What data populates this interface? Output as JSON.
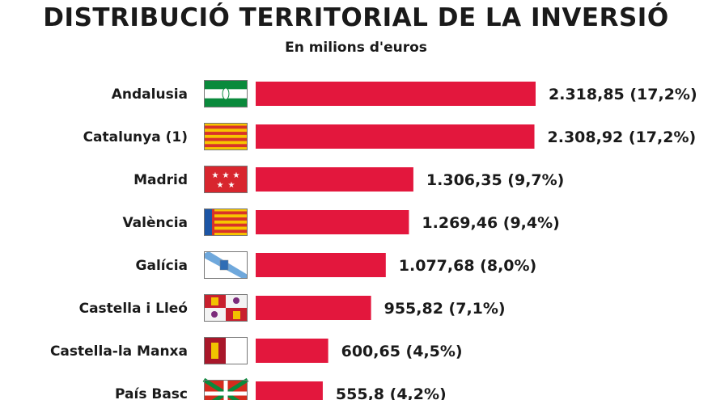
{
  "chart_data": {
    "type": "bar",
    "orientation": "horizontal",
    "title": "DISTRIBUCIÓ TERRITORIAL DE LA INVERSIÓ",
    "subtitle": "En milions d'euros",
    "unit": "milions d'euros",
    "categories": [
      "Andalusia",
      "Catalunya (1)",
      "Madrid",
      "València",
      "Galícia",
      "Castella i Lleó",
      "Castella-la Manxa",
      "País Basc"
    ],
    "values": [
      2318.85,
      2308.92,
      1306.35,
      1269.46,
      1077.68,
      955.82,
      600.65,
      555.8
    ],
    "value_labels": [
      "2.318,85 (17,2%)",
      "2.308,92 (17,2%)",
      "1.306,35 (9,7%)",
      "1.269,46 (9,4%)",
      "1.077,68 (8,0%)",
      "955,82 (7,1%)",
      "600,65 (4,5%)",
      "555,8 (4,2%)"
    ],
    "flags": [
      "andalusia-flag-icon",
      "catalunya-flag-icon",
      "madrid-flag-icon",
      "valencia-flag-icon",
      "galicia-flag-icon",
      "castella-lleo-flag-icon",
      "castella-la-manxa-flag-icon",
      "pais-basc-flag-icon"
    ],
    "bar_color": "#e3173d",
    "xlim": [
      0,
      2318.85
    ],
    "grid": false,
    "legend": "none"
  }
}
